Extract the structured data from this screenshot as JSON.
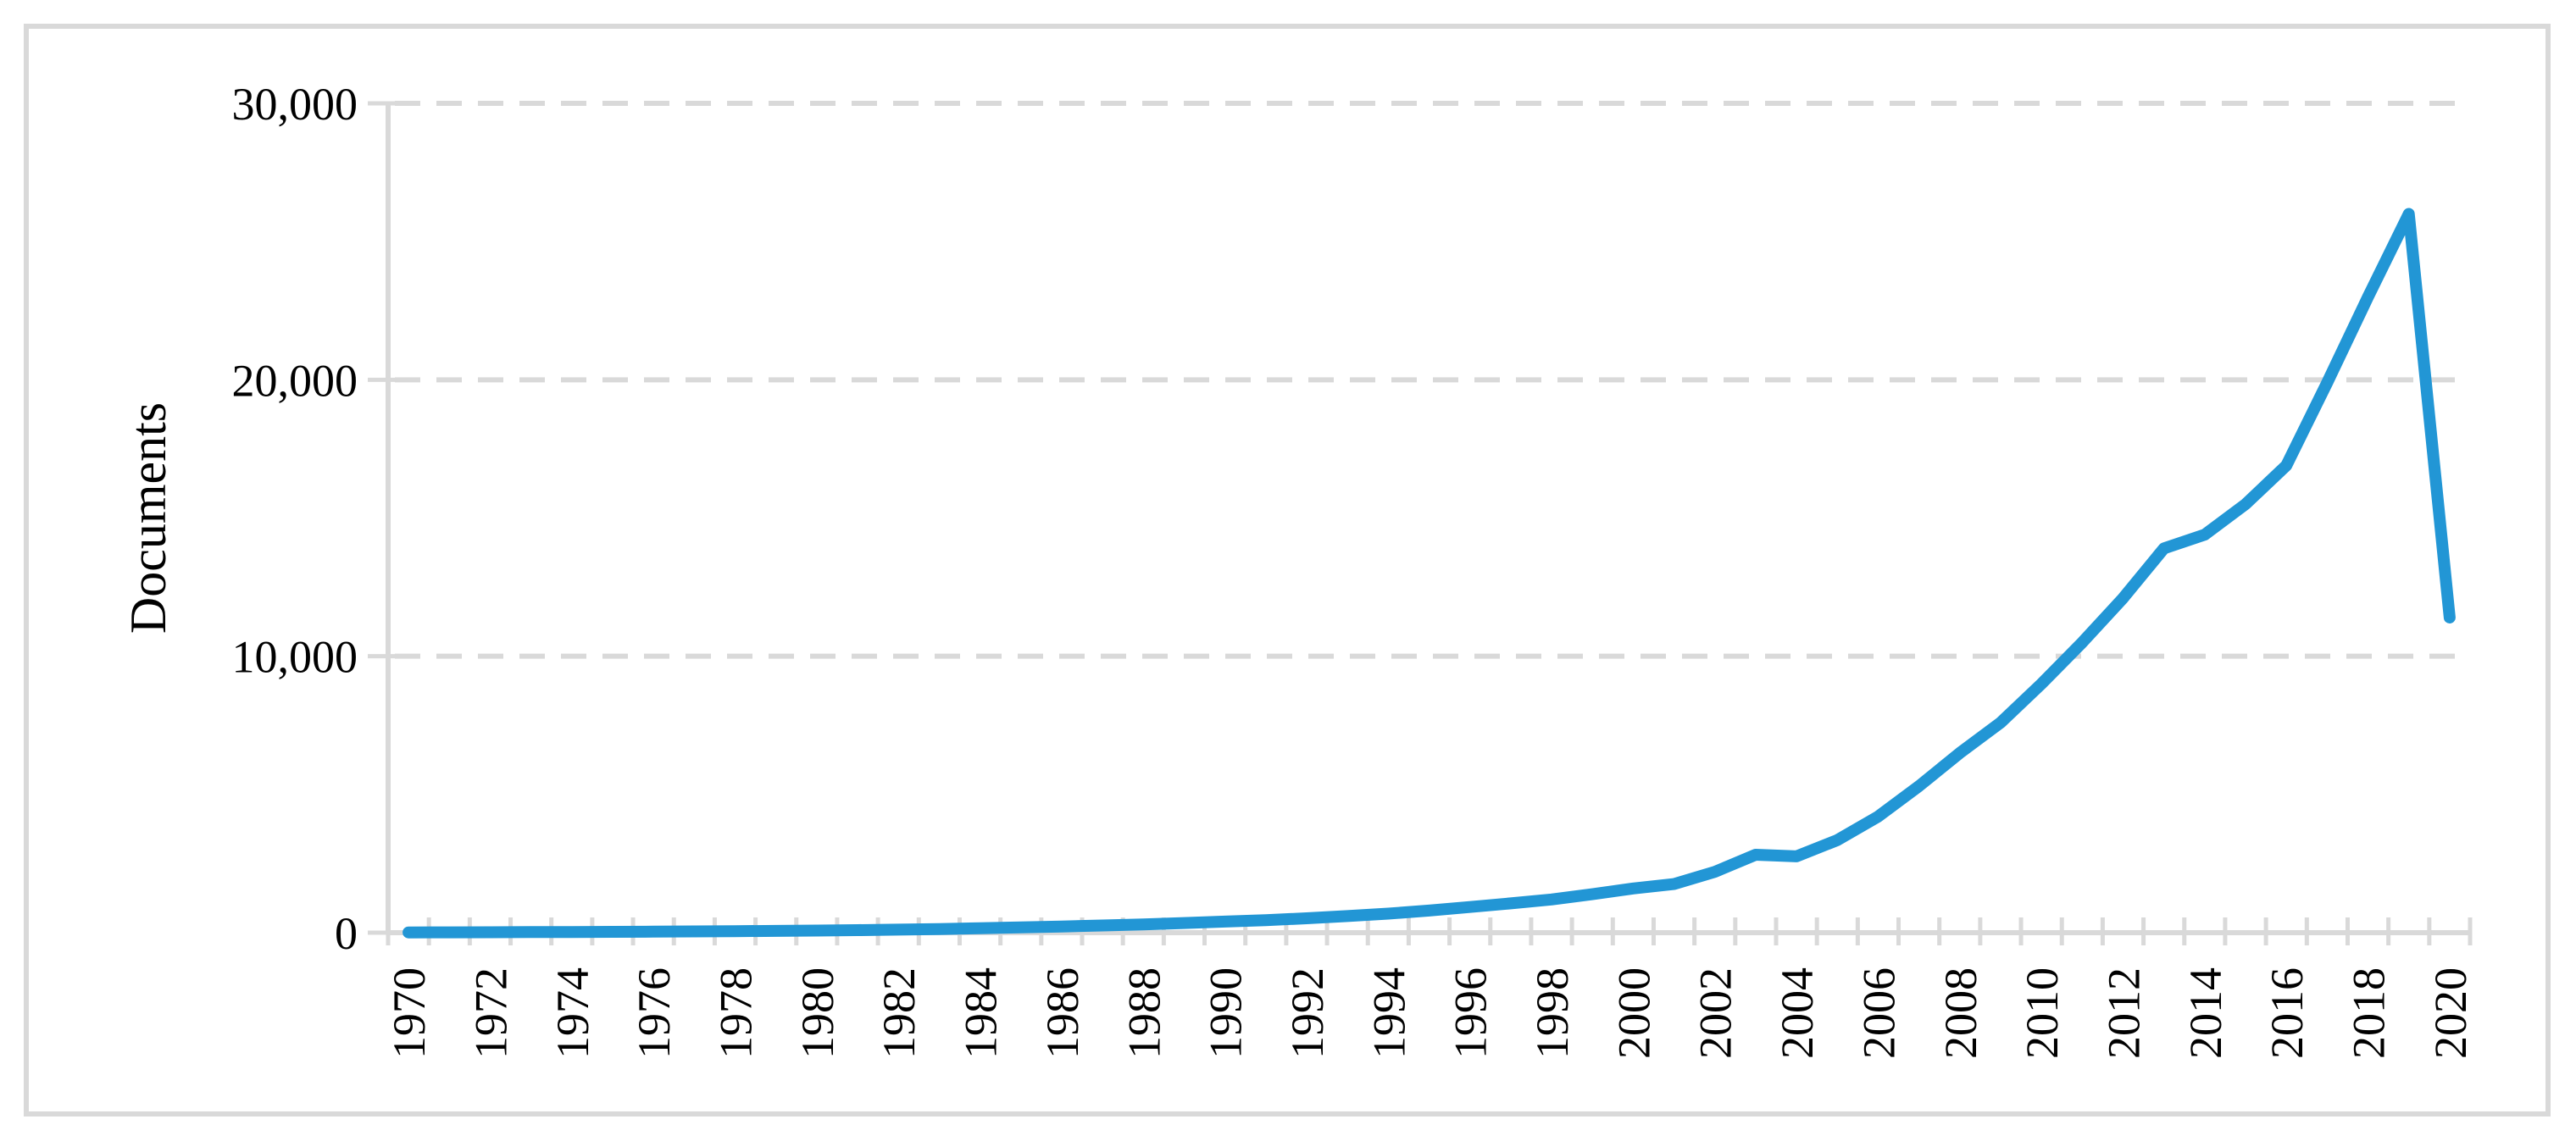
{
  "figure": {
    "background": "#ffffff",
    "border_color": "#d9d9d9"
  },
  "chart_data": {
    "type": "line",
    "title": "",
    "xlabel": "",
    "ylabel": "Documents",
    "x": [
      1970,
      1971,
      1972,
      1973,
      1974,
      1975,
      1976,
      1977,
      1978,
      1979,
      1980,
      1981,
      1982,
      1983,
      1984,
      1985,
      1986,
      1987,
      1988,
      1989,
      1990,
      1991,
      1992,
      1993,
      1994,
      1995,
      1996,
      1997,
      1998,
      1999,
      2000,
      2001,
      2002,
      2003,
      2004,
      2005,
      2006,
      2007,
      2008,
      2009,
      2010,
      2011,
      2012,
      2013,
      2014,
      2015,
      2016,
      2017,
      2018,
      2019,
      2020
    ],
    "values": [
      10,
      13,
      16,
      20,
      25,
      30,
      37,
      45,
      55,
      65,
      78,
      92,
      110,
      132,
      158,
      190,
      225,
      262,
      300,
      348,
      400,
      455,
      520,
      600,
      690,
      800,
      930,
      1060,
      1200,
      1390,
      1600,
      1760,
      2200,
      2820,
      2760,
      3350,
      4200,
      5300,
      6500,
      7600,
      9000,
      10500,
      12100,
      13900,
      14400,
      15500,
      16900,
      19900,
      23000,
      26000,
      11400
    ],
    "x_tick_label_step": 2,
    "x_tick_labels": [
      "1970",
      "1972",
      "1974",
      "1976",
      "1978",
      "1980",
      "1982",
      "1984",
      "1986",
      "1988",
      "1990",
      "1992",
      "1994",
      "1996",
      "1998",
      "2000",
      "2002",
      "2004",
      "2006",
      "2008",
      "2010",
      "2012",
      "2014",
      "2016",
      "2018",
      "2020"
    ],
    "y_ticks": [
      0,
      10000,
      20000,
      30000
    ],
    "y_tick_labels": [
      "0",
      "10,000",
      "20,000",
      "30,000"
    ],
    "ylim": [
      0,
      30000
    ],
    "grid": "horizontal-dashed",
    "legend": "none",
    "line_color": "#2296d5",
    "axis_color": "#d9d9d9",
    "label_color": "#000000"
  }
}
